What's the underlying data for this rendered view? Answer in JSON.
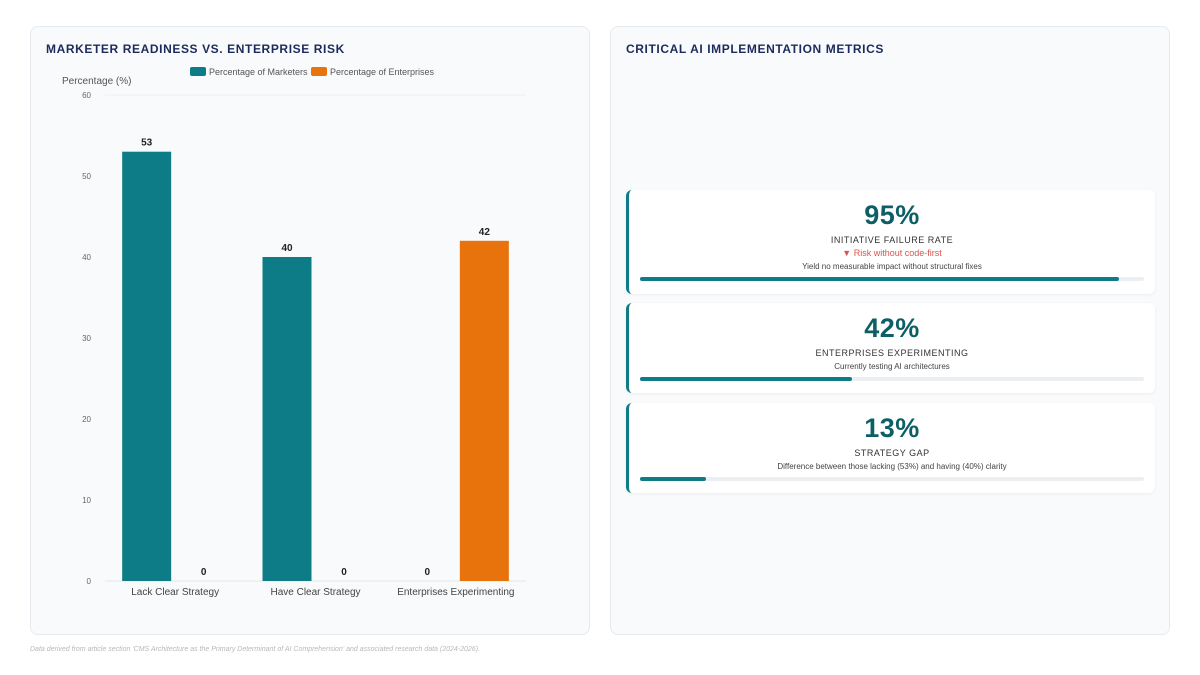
{
  "left_panel": {
    "title": "MARKETER READINESS VS. ENTERPRISE RISK"
  },
  "right_panel": {
    "title": "CRITICAL AI IMPLEMENTATION METRICS"
  },
  "chart_data": {
    "type": "bar",
    "ylabel": "Percentage (%)",
    "xlabel": "",
    "ylim": [
      0,
      60
    ],
    "yticks": [
      0,
      10,
      20,
      30,
      40,
      50,
      60
    ],
    "grid": false,
    "legend_position": "top",
    "categories": [
      "Lack Clear Strategy",
      "Have Clear Strategy",
      "Enterprises Experimenting"
    ],
    "series": [
      {
        "name": "Percentage of Marketers",
        "color": "#0e7c86",
        "values": [
          53,
          40,
          0
        ]
      },
      {
        "name": "Percentage of Enterprises",
        "color": "#e8720c",
        "values": [
          0,
          0,
          42
        ]
      }
    ]
  },
  "metrics": [
    {
      "value": "95%",
      "label": "INITIATIVE FAILURE RATE",
      "risk": "▼ Risk without code-first",
      "description": "Yield no measurable impact without structural fixes",
      "progress": 0.95
    },
    {
      "value": "42%",
      "label": "ENTERPRISES EXPERIMENTING",
      "description": "Currently testing AI architectures",
      "progress": 0.42
    },
    {
      "value": "13%",
      "label": "STRATEGY GAP",
      "description": "Difference between those lacking (53%) and having (40%) clarity",
      "progress": 0.13
    }
  ],
  "footnote": "Data derived from article section 'CMS Architecture as the Primary Determinant of AI Comprehension' and associated research data (2024-2026)."
}
